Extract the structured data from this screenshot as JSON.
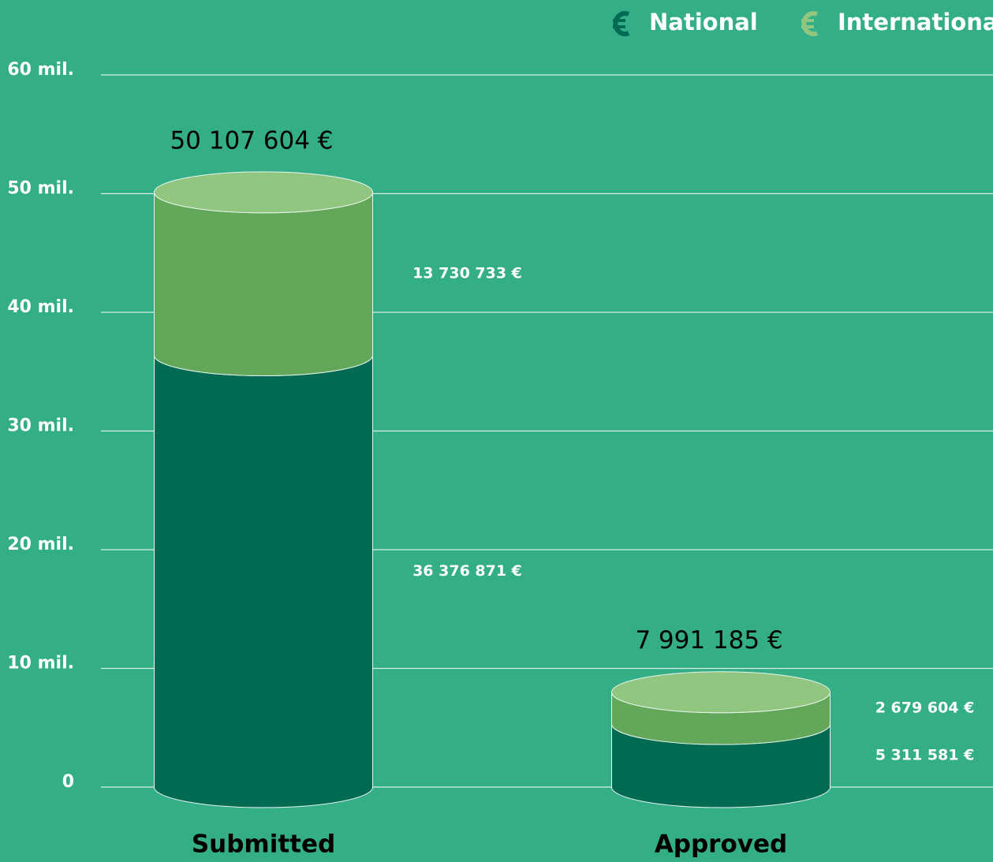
{
  "chart_data": {
    "type": "bar",
    "stacked": true,
    "categories": [
      "Submitted",
      "Approved"
    ],
    "series": [
      {
        "name": "National",
        "color": "#006b52",
        "values": [
          36376871,
          5311581
        ],
        "value_labels": [
          "36 376 871 €",
          "5 311 581 €"
        ]
      },
      {
        "name": "International",
        "color": "#63a85a",
        "values": [
          13730733,
          2679604
        ],
        "value_labels": [
          "13 730 733 €",
          "2 679 604 €"
        ]
      }
    ],
    "totals": {
      "values": [
        50107604,
        7991185
      ],
      "value_labels": [
        "50 107 604 €",
        "7 991 185 €"
      ]
    },
    "ylim": [
      0,
      60000000
    ],
    "yticks": [
      0,
      {
        "value": 10000000,
        "label": "10 mil."
      },
      {
        "value": 20000000,
        "label": "20 mil."
      },
      {
        "value": 30000000,
        "label": "30 mil."
      },
      {
        "value": 40000000,
        "label": "40 mil."
      },
      {
        "value": 50000000,
        "label": "50 mil."
      },
      {
        "value": 60000000,
        "label": "60 mil."
      }
    ],
    "grid": true,
    "legend": "top-right"
  }
}
